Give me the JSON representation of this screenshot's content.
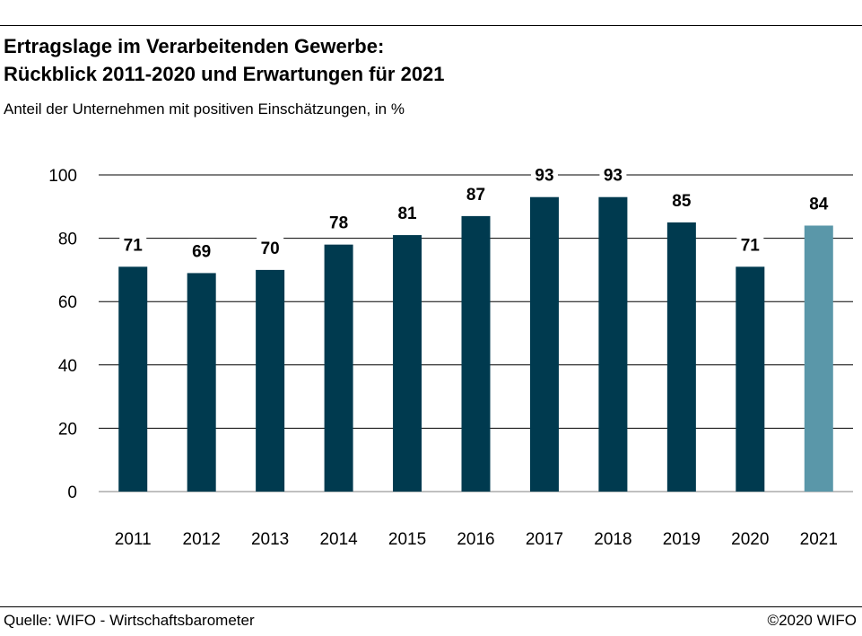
{
  "header": {
    "title_line1": "Ertragslage im Verarbeitenden Gewerbe:",
    "title_line2": "Rückblick 2011-2020 und Erwartungen für 2021",
    "subtitle": "Anteil der Unternehmen mit positiven Einschätzungen, in %"
  },
  "footer": {
    "source": "Quelle: WIFO - Wirtschaftsbarometer",
    "copyright": "©2020 WIFO"
  },
  "chart_data": {
    "type": "bar",
    "categories": [
      "2011",
      "2012",
      "2013",
      "2014",
      "2015",
      "2016",
      "2017",
      "2018",
      "2019",
      "2020",
      "2021"
    ],
    "values": [
      71,
      69,
      70,
      78,
      81,
      87,
      93,
      93,
      85,
      71,
      84
    ],
    "ylim": [
      0,
      100
    ],
    "yticks": [
      0,
      20,
      40,
      60,
      80,
      100
    ],
    "grid": true,
    "colors": {
      "actual": "#003a4f",
      "expectation": "#5a97a9",
      "grid": "#000000"
    },
    "expectation_categories": [
      "2021"
    ]
  }
}
